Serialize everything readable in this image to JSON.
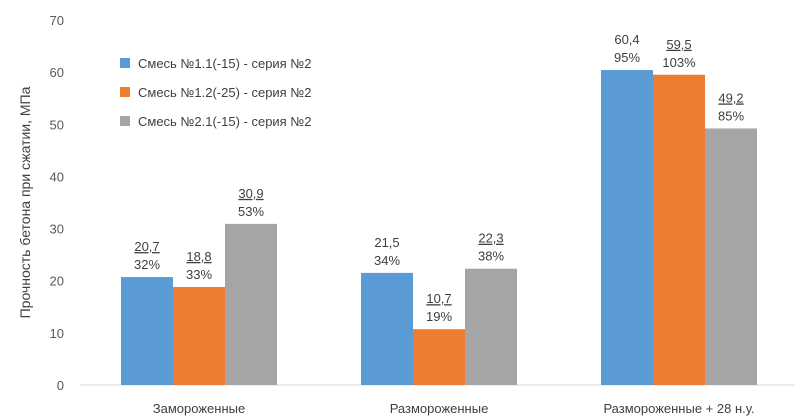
{
  "chart_data": {
    "type": "bar",
    "title": "",
    "xlabel": "",
    "ylabel": "Прочность бетона при сжатии, МПа",
    "ylim": [
      0,
      70
    ],
    "yticks": [
      0,
      10,
      20,
      30,
      40,
      50,
      60,
      70
    ],
    "grid": false,
    "legend_position": "top-left",
    "categories": [
      "Замороженные",
      "Размороженные",
      "Размороженные + 28 н.у."
    ],
    "series": [
      {
        "name": "Смесь №1.1(-15) - серия №2",
        "color": "#5B9BD5",
        "values": [
          20.7,
          21.5,
          60.4
        ],
        "value_labels": [
          "20,7",
          "21,5",
          "60,4"
        ],
        "percent_labels": [
          "32%",
          "34%",
          "95%"
        ],
        "underlined": [
          true,
          false,
          false
        ]
      },
      {
        "name": "Смесь №1.2(-25) - серия №2",
        "color": "#ED7D31",
        "values": [
          18.8,
          10.7,
          59.5
        ],
        "value_labels": [
          "18,8",
          "10,7",
          "59,5"
        ],
        "percent_labels": [
          "33%",
          "19%",
          "103%"
        ],
        "underlined": [
          true,
          true,
          true
        ]
      },
      {
        "name": "Смесь №2.1(-15) - серия №2",
        "color": "#A5A5A5",
        "values": [
          30.9,
          22.3,
          49.2
        ],
        "value_labels": [
          "30,9",
          "22,3",
          "49,2"
        ],
        "percent_labels": [
          "53%",
          "38%",
          "85%"
        ],
        "underlined": [
          true,
          true,
          true
        ]
      }
    ]
  }
}
